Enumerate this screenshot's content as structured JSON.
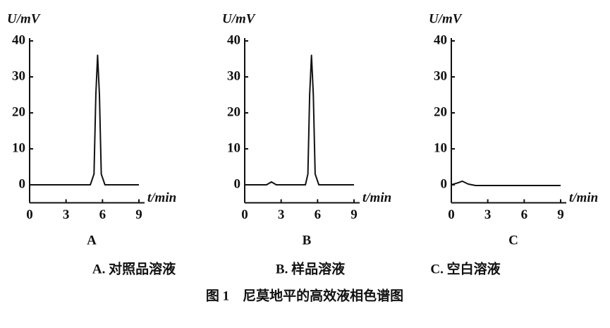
{
  "chart_data": [
    {
      "type": "line",
      "title": "A",
      "ylabel": "U/mV",
      "xlabel": "t/min",
      "xlim": [
        0,
        9
      ],
      "ylim": [
        -5,
        40
      ],
      "xticks": [
        0,
        3,
        6,
        9
      ],
      "yticks": [
        0,
        10,
        20,
        30,
        40
      ],
      "grid": false,
      "series": [
        {
          "name": "A",
          "color": "#111111",
          "x": [
            0,
            5.0,
            5.3,
            5.45,
            5.6,
            5.75,
            5.9,
            6.2,
            9
          ],
          "values": [
            0,
            0,
            3,
            25,
            36,
            25,
            3,
            0,
            0
          ]
        }
      ]
    },
    {
      "type": "line",
      "title": "B",
      "ylabel": "U/mV",
      "xlabel": "t/min",
      "xlim": [
        0,
        9
      ],
      "ylim": [
        -5,
        40
      ],
      "xticks": [
        0,
        3,
        6,
        9
      ],
      "yticks": [
        0,
        10,
        20,
        30,
        40
      ],
      "grid": false,
      "series": [
        {
          "name": "B",
          "color": "#111111",
          "x": [
            0,
            1.8,
            2.2,
            2.6,
            5.0,
            5.2,
            5.35,
            5.5,
            5.65,
            5.8,
            6.1,
            9
          ],
          "values": [
            0,
            0,
            0.8,
            0,
            0,
            3,
            25,
            36,
            25,
            3,
            0,
            0
          ]
        }
      ]
    },
    {
      "type": "line",
      "title": "C",
      "ylabel": "U/mV",
      "xlabel": "t/min",
      "xlim": [
        0,
        9
      ],
      "ylim": [
        -5,
        40
      ],
      "xticks": [
        0,
        3,
        6,
        9
      ],
      "yticks": [
        0,
        10,
        20,
        30,
        40
      ],
      "grid": false,
      "series": [
        {
          "name": "C",
          "color": "#111111",
          "x": [
            0,
            0.5,
            0.9,
            1.4,
            2.0,
            9
          ],
          "values": [
            0,
            0.5,
            1,
            0.2,
            -0.2,
            -0.2
          ]
        }
      ]
    }
  ],
  "legend_items": [
    "A. 对照品溶液",
    "B. 样品溶液",
    "C. 空白溶液"
  ],
  "caption": "图 1    尼莫地平的高效液相色谱图"
}
